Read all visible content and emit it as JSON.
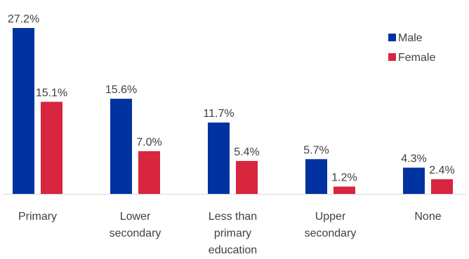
{
  "chart_data": {
    "type": "bar",
    "title": "",
    "xlabel": "",
    "ylabel": "",
    "ylim": [
      0,
      27.2
    ],
    "grid": false,
    "legend_position": "top-right",
    "categories": [
      [
        "Primary"
      ],
      [
        "Lower",
        "secondary"
      ],
      [
        "Less than",
        "primary",
        "education"
      ],
      [
        "Upper",
        "secondary"
      ],
      [
        "None"
      ]
    ],
    "series": [
      {
        "name": "Male",
        "color": "#0033A0",
        "values": [
          27.2,
          15.6,
          11.7,
          5.7,
          4.3
        ],
        "labels": [
          "27.2%",
          "15.6%",
          "11.7%",
          "5.7%",
          "4.3%"
        ]
      },
      {
        "name": "Female",
        "color": "#D7263D",
        "values": [
          15.1,
          7.0,
          5.4,
          1.2,
          2.4
        ],
        "labels": [
          "15.1%",
          "7.0%",
          "5.4%",
          "1.2%",
          "2.4%"
        ]
      }
    ]
  }
}
